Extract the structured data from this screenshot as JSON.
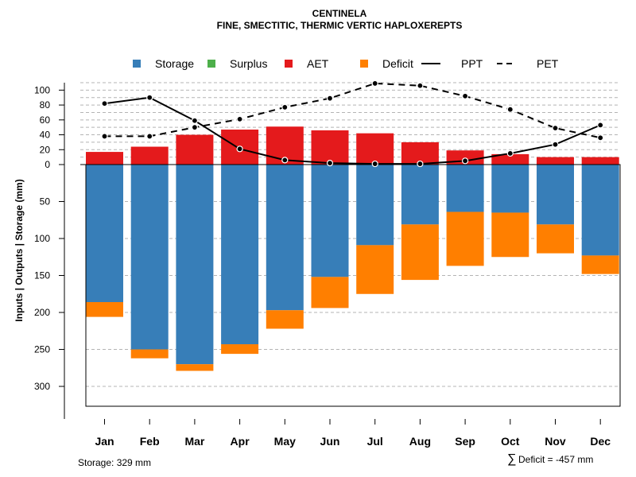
{
  "chart_data": {
    "type": "bar",
    "title": "CENTINELA",
    "subtitle": "FINE, SMECTITIC, THERMIC VERTIC HAPLOXEREPTS",
    "ylabel": "Inputs | Outputs | Storage    (mm)",
    "categories": [
      "Jan",
      "Feb",
      "Mar",
      "Apr",
      "May",
      "Jun",
      "Jul",
      "Aug",
      "Sep",
      "Oct",
      "Nov",
      "Dec"
    ],
    "legend": [
      {
        "name": "Storage",
        "kind": "square",
        "color": "#377EB8"
      },
      {
        "name": "Surplus",
        "kind": "square",
        "color": "#4DAF4A"
      },
      {
        "name": "AET",
        "kind": "square",
        "color": "#E41A1C"
      },
      {
        "name": "Deficit",
        "kind": "square",
        "color": "#FF7F00"
      },
      {
        "name": "PPT",
        "kind": "solid"
      },
      {
        "name": "PET",
        "kind": "dashed"
      }
    ],
    "colors": {
      "storage": "#377EB8",
      "surplus": "#4DAF4A",
      "aet": "#E41A1C",
      "deficit": "#FF7F00"
    },
    "upper_ticks": [
      0,
      20,
      40,
      60,
      80,
      100
    ],
    "lower_ticks": [
      50,
      100,
      150,
      200,
      250,
      300
    ],
    "upper_ylim": [
      0,
      110
    ],
    "lower_ylim": [
      0,
      329
    ],
    "series": [
      {
        "name": "AET",
        "values": [
          17,
          24,
          40,
          47,
          51,
          46,
          42,
          30,
          19,
          14,
          10,
          10
        ]
      },
      {
        "name": "Storage",
        "values": [
          186,
          250,
          270,
          243,
          197,
          152,
          109,
          81,
          64,
          65,
          81,
          123
        ]
      },
      {
        "name": "Deficit",
        "values": [
          20,
          12,
          9,
          13,
          25,
          42,
          66,
          75,
          73,
          60,
          39,
          25
        ]
      },
      {
        "name": "Surplus",
        "values": [
          0,
          0,
          0,
          0,
          0,
          0,
          0,
          0,
          0,
          0,
          0,
          0
        ]
      },
      {
        "name": "PPT",
        "values": [
          82,
          90,
          59,
          21,
          6,
          2,
          1,
          1,
          5,
          15,
          27,
          53
        ]
      },
      {
        "name": "PET",
        "values": [
          38,
          38,
          50,
          61,
          77,
          89,
          109,
          106,
          92,
          74,
          49,
          36
        ]
      }
    ]
  },
  "footer": {
    "storage": "Storage: 329 mm",
    "deficit_symbol": "∑",
    "deficit": "Deficit = -457 mm"
  }
}
